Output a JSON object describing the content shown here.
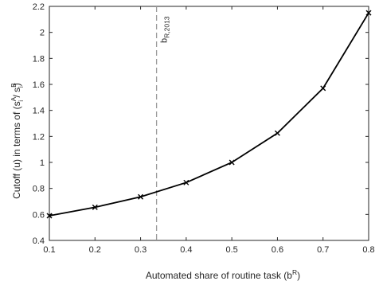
{
  "chart_data": {
    "type": "line",
    "x": [
      0.1,
      0.2,
      0.3,
      0.4,
      0.5,
      0.6,
      0.7,
      0.8
    ],
    "series": [
      {
        "values": [
          0.59,
          0.655,
          0.735,
          0.845,
          1.0,
          1.225,
          1.57,
          2.15
        ],
        "color": "#000000",
        "marker": "x"
      }
    ],
    "xlim": [
      0.1,
      0.8
    ],
    "ylim": [
      0.4,
      2.2
    ],
    "xticks": [
      "0.1",
      "0.2",
      "0.3",
      "0.4",
      "0.5",
      "0.6",
      "0.7",
      "0.8"
    ],
    "yticks": [
      "0.4",
      "0.6",
      "0.8",
      "1",
      "1.2",
      "1.4",
      "1.6",
      "1.8",
      "2",
      "2.2"
    ],
    "xlabel": {
      "main": "Automated share of routine task (b",
      "sup": "R",
      "close": ")"
    },
    "ylabel": {
      "main": "Cutoff (u) in terms of (s",
      "subA": "i",
      "supA": "A",
      "mid": " / s",
      "subB": "i",
      "supB": "B",
      "close": ")"
    },
    "vline": {
      "x": 0.335,
      "style": "dashed",
      "color": "#9a9a9a",
      "label_main": "b",
      "label_sub": "R,2013"
    },
    "grid": false
  }
}
